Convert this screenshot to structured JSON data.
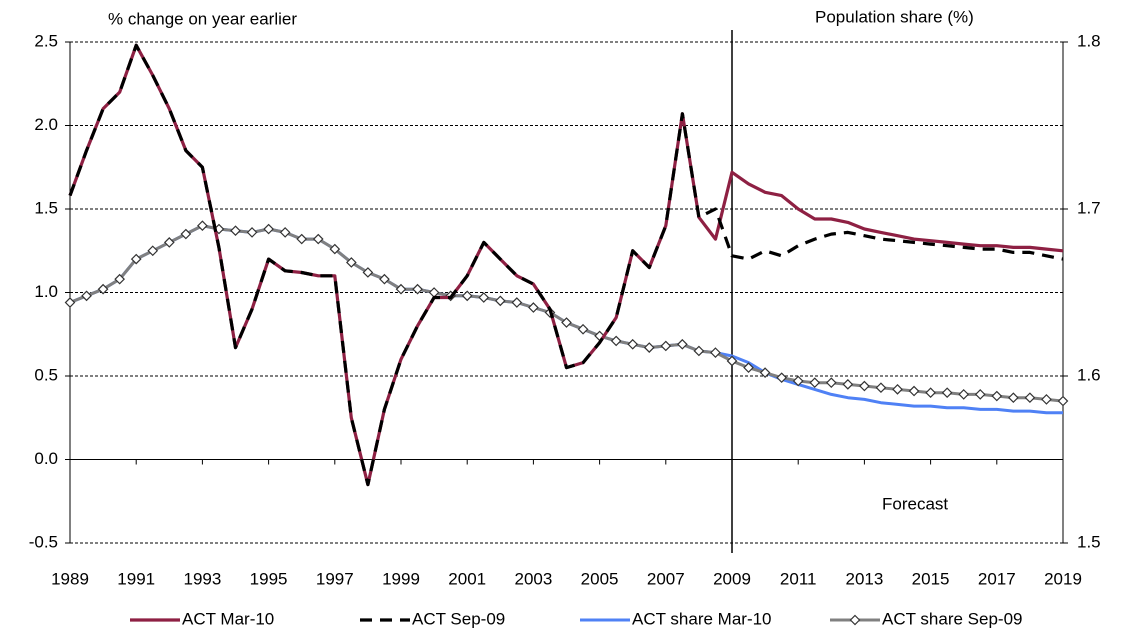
{
  "chart_data": {
    "type": "line",
    "title_left": "% change on year earlier",
    "title_right": "Population share (%)",
    "annotation": "Forecast",
    "forecast_start": 2009,
    "x": [
      1989,
      1989.5,
      1990,
      1990.5,
      1991,
      1991.5,
      1992,
      1992.5,
      1993,
      1993.5,
      1994,
      1994.5,
      1995,
      1995.5,
      1996,
      1996.5,
      1997,
      1997.5,
      1998,
      1998.5,
      1999,
      1999.5,
      2000,
      2000.5,
      2001,
      2001.5,
      2002,
      2002.5,
      2003,
      2003.5,
      2004,
      2004.5,
      2005,
      2005.5,
      2006,
      2006.5,
      2007,
      2007.5,
      2008,
      2008.5,
      2009,
      2009.5,
      2010,
      2010.5,
      2011,
      2011.5,
      2012,
      2012.5,
      2013,
      2013.5,
      2014,
      2014.5,
      2015,
      2015.5,
      2016,
      2016.5,
      2017,
      2017.5,
      2018,
      2018.5,
      2019
    ],
    "xlim": [
      1989,
      2019
    ],
    "xticks": [
      1989,
      1991,
      1993,
      1995,
      1997,
      1999,
      2001,
      2003,
      2005,
      2007,
      2009,
      2011,
      2013,
      2015,
      2017,
      2019
    ],
    "ylim": [
      -0.5,
      2.5
    ],
    "yticks": [
      {
        "value": -0.5,
        "label": "-0.5"
      },
      {
        "value": 0,
        "label": "0.0"
      },
      0.5,
      {
        "value": 1,
        "label": "1.0"
      },
      1.5,
      {
        "value": 2,
        "label": "2.0"
      },
      2.5
    ],
    "y2lim": [
      1.5,
      1.8
    ],
    "y2ticks": [
      1.5,
      1.6,
      1.7,
      1.8
    ],
    "grid": true,
    "series": [
      {
        "name": "ACT Mar-10",
        "color": "#8e2043",
        "style": "solid",
        "axis": "y",
        "values": [
          1.58,
          1.85,
          2.1,
          2.2,
          2.48,
          2.3,
          2.1,
          1.85,
          1.75,
          1.27,
          0.67,
          0.9,
          1.2,
          1.13,
          1.12,
          1.1,
          1.1,
          0.25,
          -0.15,
          0.3,
          0.6,
          0.8,
          0.97,
          0.97,
          1.1,
          1.3,
          1.2,
          1.1,
          1.05,
          0.9,
          0.55,
          0.58,
          0.7,
          0.85,
          1.25,
          1.15,
          1.4,
          2.07,
          1.45,
          1.32,
          1.72,
          1.65,
          1.6,
          1.58,
          1.5,
          1.44,
          1.44,
          1.42,
          1.38,
          1.36,
          1.34,
          1.32,
          1.31,
          1.3,
          1.29,
          1.28,
          1.28,
          1.27,
          1.27,
          1.26,
          1.25
        ]
      },
      {
        "name": "ACT Sep-09",
        "color": "#000000",
        "style": "dashed",
        "axis": "y",
        "values": [
          1.58,
          1.85,
          2.1,
          2.2,
          2.48,
          2.3,
          2.1,
          1.85,
          1.75,
          1.27,
          0.67,
          0.9,
          1.2,
          1.13,
          1.12,
          1.1,
          1.1,
          0.25,
          -0.15,
          0.3,
          0.6,
          0.8,
          0.97,
          0.97,
          1.1,
          1.3,
          1.2,
          1.1,
          1.05,
          0.9,
          0.55,
          0.58,
          0.7,
          0.85,
          1.25,
          1.15,
          1.4,
          2.07,
          1.45,
          1.5,
          1.22,
          1.2,
          1.25,
          1.22,
          1.28,
          1.32,
          1.35,
          1.36,
          1.34,
          1.32,
          1.31,
          1.3,
          1.29,
          1.28,
          1.27,
          1.26,
          1.26,
          1.24,
          1.24,
          1.22,
          1.2
        ]
      },
      {
        "name": "ACT share Mar-10",
        "color": "#4f81f5",
        "style": "solid",
        "axis": "y2",
        "values": [
          1.644,
          1.648,
          1.652,
          1.658,
          1.67,
          1.675,
          1.68,
          1.685,
          1.69,
          1.688,
          1.687,
          1.686,
          1.688,
          1.686,
          1.682,
          1.682,
          1.676,
          1.668,
          1.662,
          1.658,
          1.652,
          1.652,
          1.65,
          1.648,
          1.648,
          1.647,
          1.645,
          1.644,
          1.641,
          1.638,
          1.632,
          1.628,
          1.624,
          1.621,
          1.619,
          1.617,
          1.618,
          1.619,
          1.615,
          1.614,
          1.612,
          1.608,
          1.602,
          1.598,
          1.595,
          1.592,
          1.589,
          1.587,
          1.586,
          1.584,
          1.583,
          1.582,
          1.582,
          1.581,
          1.581,
          1.58,
          1.58,
          1.579,
          1.579,
          1.578,
          1.578
        ]
      },
      {
        "name": "ACT share Sep-09",
        "color": "#808080",
        "style": "solid",
        "axis": "y2",
        "marker": "diamond",
        "values": [
          1.644,
          1.648,
          1.652,
          1.658,
          1.67,
          1.675,
          1.68,
          1.685,
          1.69,
          1.688,
          1.687,
          1.686,
          1.688,
          1.686,
          1.682,
          1.682,
          1.676,
          1.668,
          1.662,
          1.658,
          1.652,
          1.652,
          1.65,
          1.648,
          1.648,
          1.647,
          1.645,
          1.644,
          1.641,
          1.638,
          1.632,
          1.628,
          1.624,
          1.621,
          1.619,
          1.617,
          1.618,
          1.619,
          1.615,
          1.614,
          1.609,
          1.605,
          1.602,
          1.599,
          1.597,
          1.596,
          1.596,
          1.595,
          1.594,
          1.593,
          1.592,
          1.591,
          1.59,
          1.59,
          1.589,
          1.589,
          1.588,
          1.587,
          1.587,
          1.586,
          1.585
        ]
      }
    ]
  }
}
